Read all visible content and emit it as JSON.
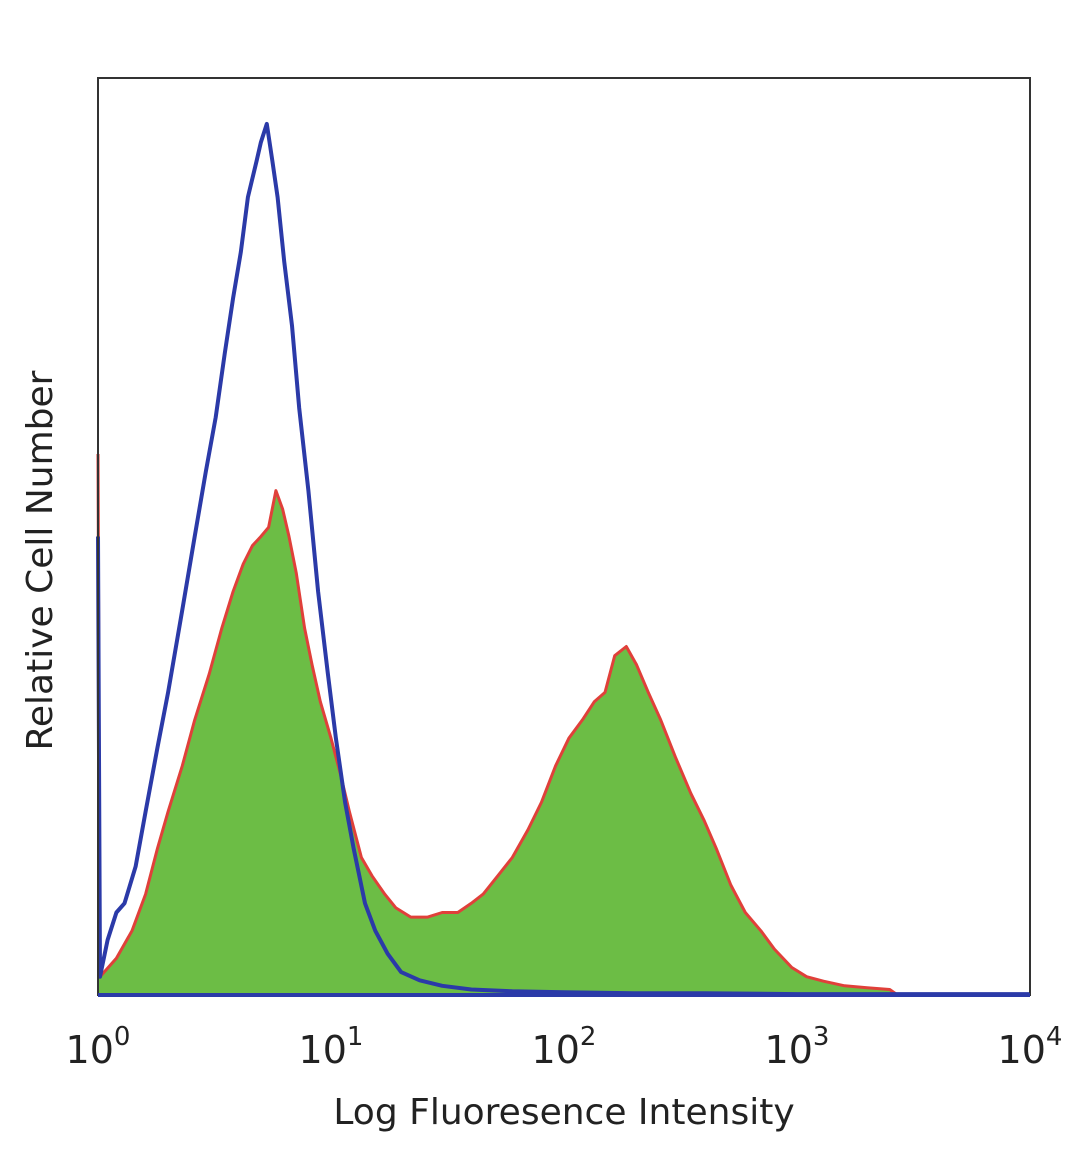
{
  "chart_data": {
    "type": "area",
    "title": "",
    "xlabel": "Log Fluoresence Intensity",
    "ylabel": "Relative Cell Number",
    "x_scale": "log",
    "xlim": [
      1,
      10000
    ],
    "ylim": [
      0,
      1.0
    ],
    "x_ticks": [
      {
        "base": "10",
        "exp": "0",
        "value": 1
      },
      {
        "base": "10",
        "exp": "1",
        "value": 10
      },
      {
        "base": "10",
        "exp": "2",
        "value": 100
      },
      {
        "base": "10",
        "exp": "3",
        "value": 1000
      },
      {
        "base": "10",
        "exp": "4",
        "value": 10000
      }
    ],
    "grid": false,
    "legend": "none",
    "series": [
      {
        "style": "outline",
        "color": "#2b3aa8",
        "points": [
          [
            1.0,
            0.5
          ],
          [
            1.02,
            0.02
          ],
          [
            1.1,
            0.06
          ],
          [
            1.2,
            0.09
          ],
          [
            1.3,
            0.1
          ],
          [
            1.45,
            0.14
          ],
          [
            1.6,
            0.2
          ],
          [
            1.8,
            0.27
          ],
          [
            2.0,
            0.33
          ],
          [
            2.3,
            0.42
          ],
          [
            2.6,
            0.5
          ],
          [
            2.9,
            0.57
          ],
          [
            3.2,
            0.63
          ],
          [
            3.5,
            0.7
          ],
          [
            3.8,
            0.76
          ],
          [
            4.1,
            0.81
          ],
          [
            4.4,
            0.87
          ],
          [
            4.8,
            0.91
          ],
          [
            5.0,
            0.93
          ],
          [
            5.3,
            0.95
          ],
          [
            5.6,
            0.91
          ],
          [
            5.9,
            0.87
          ],
          [
            6.3,
            0.8
          ],
          [
            6.8,
            0.73
          ],
          [
            7.3,
            0.64
          ],
          [
            8.0,
            0.55
          ],
          [
            8.8,
            0.44
          ],
          [
            9.7,
            0.35
          ],
          [
            10.5,
            0.28
          ],
          [
            11.5,
            0.21
          ],
          [
            12.5,
            0.16
          ],
          [
            14.0,
            0.1
          ],
          [
            15.5,
            0.07
          ],
          [
            17.5,
            0.045
          ],
          [
            20.0,
            0.025
          ],
          [
            24.0,
            0.016
          ],
          [
            30.0,
            0.01
          ],
          [
            40.0,
            0.006
          ],
          [
            60.0,
            0.004
          ],
          [
            100.0,
            0.003
          ],
          [
            200.0,
            0.002
          ],
          [
            400.0,
            0.002
          ],
          [
            1000.0,
            0.001
          ],
          [
            3000.0,
            0.001
          ],
          [
            10000.0,
            0.001
          ]
        ]
      },
      {
        "style": "filled",
        "color": "#6cbd45",
        "edge_color": "#e0403a",
        "points": [
          [
            1.0,
            0.59
          ],
          [
            1.02,
            0.02
          ],
          [
            1.2,
            0.04
          ],
          [
            1.4,
            0.07
          ],
          [
            1.6,
            0.11
          ],
          [
            1.8,
            0.16
          ],
          [
            2.0,
            0.2
          ],
          [
            2.3,
            0.25
          ],
          [
            2.6,
            0.3
          ],
          [
            3.0,
            0.35
          ],
          [
            3.4,
            0.4
          ],
          [
            3.8,
            0.44
          ],
          [
            4.2,
            0.47
          ],
          [
            4.6,
            0.49
          ],
          [
            5.0,
            0.5
          ],
          [
            5.4,
            0.51
          ],
          [
            5.8,
            0.55
          ],
          [
            6.2,
            0.53
          ],
          [
            6.6,
            0.5
          ],
          [
            7.1,
            0.46
          ],
          [
            7.7,
            0.4
          ],
          [
            8.3,
            0.36
          ],
          [
            9.0,
            0.32
          ],
          [
            10.0,
            0.28
          ],
          [
            11.0,
            0.24
          ],
          [
            12.0,
            0.2
          ],
          [
            13.5,
            0.15
          ],
          [
            15.0,
            0.13
          ],
          [
            17.0,
            0.11
          ],
          [
            19.0,
            0.095
          ],
          [
            22.0,
            0.085
          ],
          [
            26.0,
            0.085
          ],
          [
            30.0,
            0.09
          ],
          [
            35.0,
            0.09
          ],
          [
            40.0,
            0.1
          ],
          [
            45.0,
            0.11
          ],
          [
            52.0,
            0.13
          ],
          [
            60.0,
            0.15
          ],
          [
            70.0,
            0.18
          ],
          [
            80.0,
            0.21
          ],
          [
            92.0,
            0.25
          ],
          [
            105.0,
            0.28
          ],
          [
            120.0,
            0.3
          ],
          [
            135.0,
            0.32
          ],
          [
            150.0,
            0.33
          ],
          [
            165.0,
            0.37
          ],
          [
            185.0,
            0.38
          ],
          [
            205.0,
            0.36
          ],
          [
            230.0,
            0.33
          ],
          [
            260.0,
            0.3
          ],
          [
            300.0,
            0.26
          ],
          [
            350.0,
            0.22
          ],
          [
            400.0,
            0.19
          ],
          [
            450.0,
            0.16
          ],
          [
            520.0,
            0.12
          ],
          [
            600.0,
            0.09
          ],
          [
            700.0,
            0.07
          ],
          [
            800.0,
            0.05
          ],
          [
            950.0,
            0.03
          ],
          [
            1100.0,
            0.02
          ],
          [
            1300.0,
            0.015
          ],
          [
            1600.0,
            0.01
          ],
          [
            2000.0,
            0.008
          ],
          [
            2500.0,
            0.006
          ],
          [
            2700.0,
            0.0
          ]
        ]
      }
    ]
  }
}
